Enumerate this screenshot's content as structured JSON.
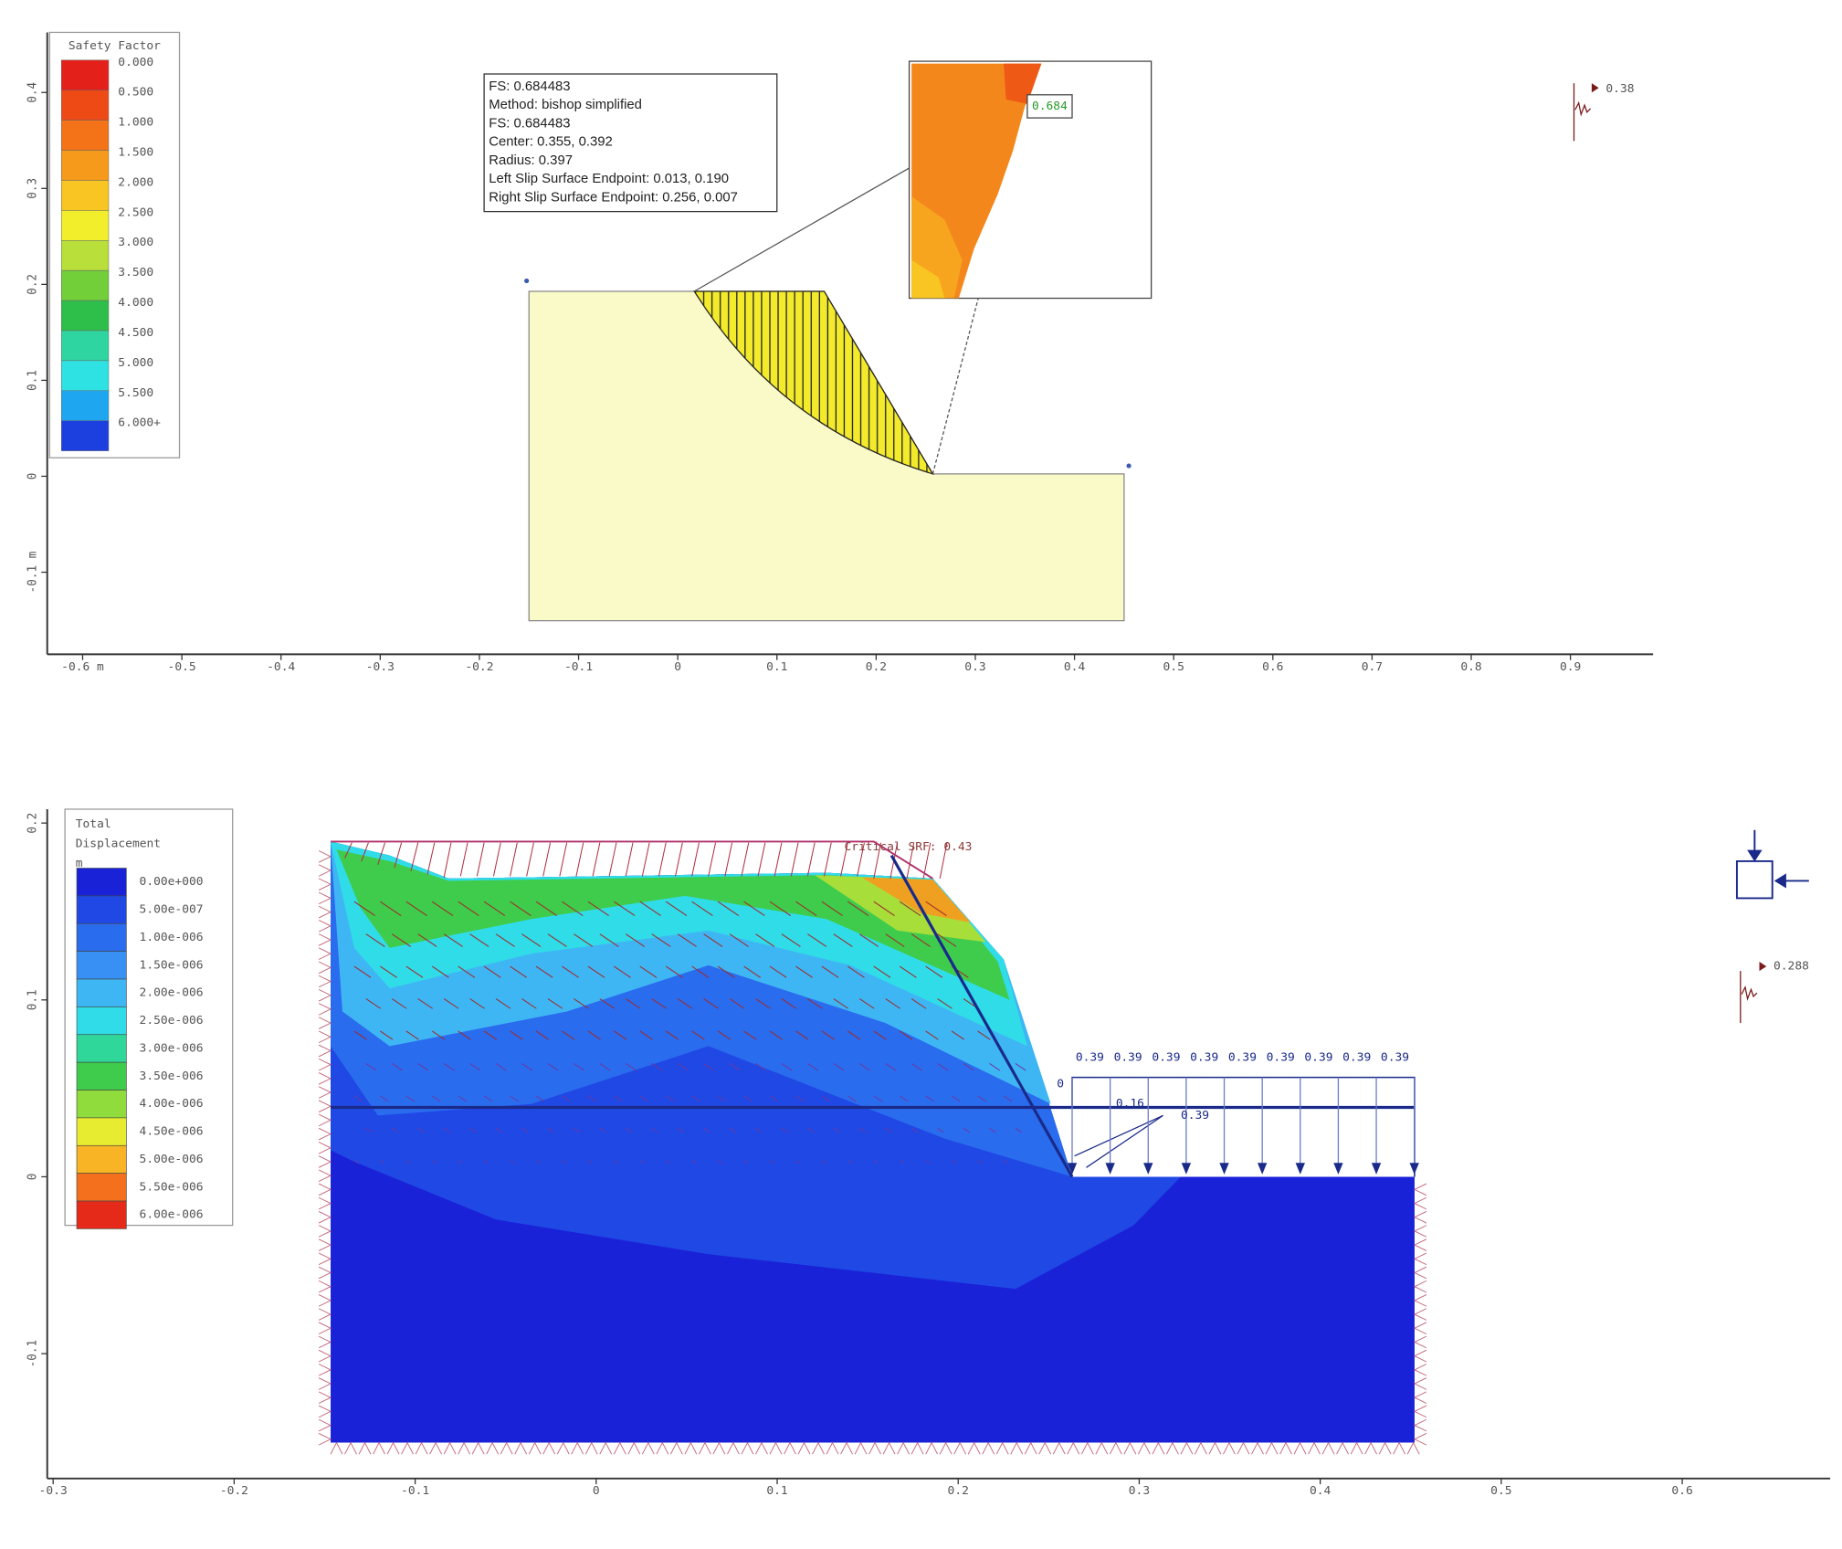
{
  "top_panel": {
    "legend": {
      "title": "Safety Factor",
      "labels": [
        "0.000",
        "0.500",
        "1.000",
        "1.500",
        "2.000",
        "2.500",
        "3.000",
        "3.500",
        "4.000",
        "4.500",
        "5.000",
        "5.500",
        "6.000+"
      ],
      "colors": [
        "#e3201a",
        "#ee4a16",
        "#f47318",
        "#f69a1c",
        "#f8c522",
        "#f3ee2c",
        "#b9e03a",
        "#72cf3a",
        "#2ebf4a",
        "#2fd5a0",
        "#2ee2e4",
        "#1fa6f0",
        "#1c3fe0"
      ]
    },
    "info_box": {
      "lines": [
        "FS: 0.684483",
        "Method: bishop simplified",
        "FS: 0.684483",
        "Center: 0.355, 0.392",
        "Radius: 0.397",
        "Left Slip Surface Endpoint: 0.013, 0.190",
        "Right Slip Surface Endpoint: 0.256, 0.007"
      ]
    },
    "zoom_label": "0.684",
    "seismic_label": "0.38",
    "x_axis_ticks": [
      "-0.6 m",
      "-0.5",
      "-0.4",
      "-0.3",
      "-0.2",
      "-0.1",
      "0",
      "0.1",
      "0.2",
      "0.3",
      "0.4",
      "0.5",
      "0.6",
      "0.7",
      "0.8",
      "0.9"
    ],
    "y_axis_ticks": [
      "0.4",
      "0.3",
      "0.2",
      "0.1",
      "0",
      "-0.1 m"
    ]
  },
  "bottom_panel": {
    "legend": {
      "title_lines": [
        "Total",
        "Displacement",
        "m"
      ],
      "labels": [
        "0.00e+000",
        "5.00e-007",
        "1.00e-006",
        "1.50e-006",
        "2.00e-006",
        "2.50e-006",
        "3.00e-006",
        "3.50e-006",
        "4.00e-006",
        "4.50e-006",
        "5.00e-006",
        "5.50e-006",
        "6.00e-006"
      ],
      "colors": [
        "#1a22d8",
        "#1f48e4",
        "#2a6cee",
        "#3890f4",
        "#3fb6f4",
        "#30dce8",
        "#2fd79a",
        "#3fcc4c",
        "#8fdc3c",
        "#e8ec30",
        "#f8b424",
        "#f4701c",
        "#e62a1a"
      ]
    },
    "srf_label": "Critical SRF: 0.43",
    "load_labels": [
      "0.39",
      "0.39",
      "0.39",
      "0.39",
      "0.39",
      "0.39",
      "0.39",
      "0.39",
      "0.39"
    ],
    "anchor_labels": [
      "0",
      "0.16",
      "0.39"
    ],
    "seismic_label": "0.288",
    "x_axis_ticks": [
      "-0.3",
      "-0.2",
      "-0.1",
      "0",
      "0.1",
      "0.2",
      "0.3",
      "0.4",
      "0.5",
      "0.6"
    ],
    "y_axis_ticks": [
      "0.2",
      "0.1",
      "0",
      "-0.1"
    ]
  }
}
